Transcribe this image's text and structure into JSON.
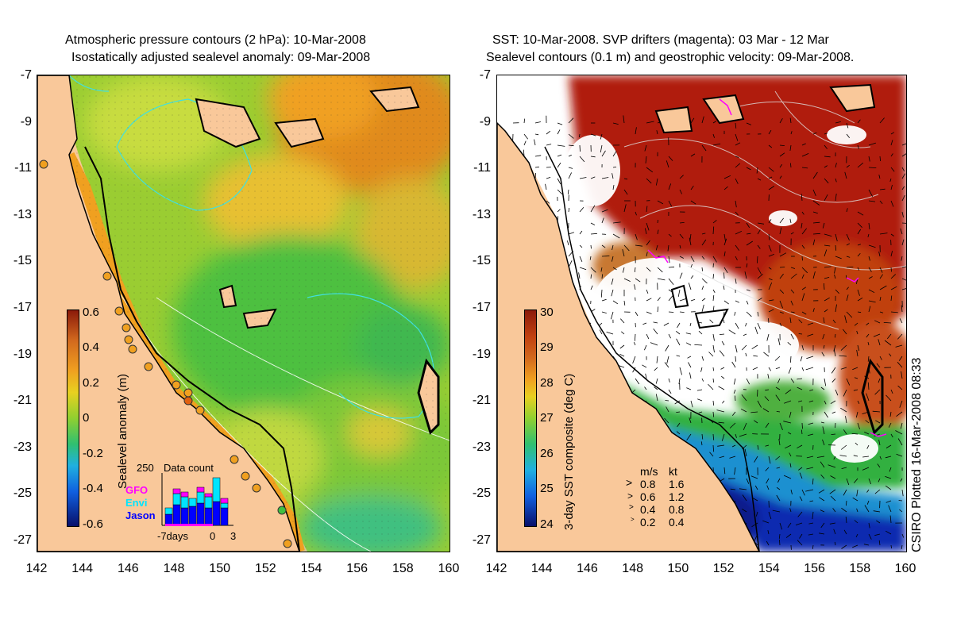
{
  "left_panel": {
    "title_line1": "Atmospheric pressure contours (2 hPa): 10-Mar-2008",
    "title_line2": "Isostatically adjusted sealevel anomaly: 09-Mar-2008",
    "colorbar_label": "Sealevel anomaly (m)",
    "colorbar_ticks": [
      "0.6",
      "0.4",
      "0.2",
      "0",
      "-0.2",
      "-0.4",
      "-0.6"
    ],
    "data_count": {
      "title": "Data count",
      "max_label": "250",
      "x_labels": [
        "-7days",
        "0",
        "3"
      ],
      "satellites": [
        {
          "name": "GFO",
          "color": "#ff00ff"
        },
        {
          "name": "Envi",
          "color": "#00e5ff"
        },
        {
          "name": "Jason",
          "color": "#0000ff"
        }
      ]
    }
  },
  "right_panel": {
    "title_line1": "SST: 10-Mar-2008. SVP drifters (magenta): 03 Mar - 12 Mar",
    "title_line2": "Sealevel contours (0.1 m) and geostrophic velocity: 09-Mar-2008.",
    "colorbar_label": "3-day SST composite (deg C)",
    "colorbar_ticks": [
      "30",
      "29",
      "28",
      "27",
      "26",
      "25",
      "24"
    ],
    "velocity_legend": {
      "header_ms": "m/s",
      "header_kt": "kt",
      "rows": [
        {
          "ms": "0.8",
          "kt": "1.6"
        },
        {
          "ms": "0.6",
          "kt": "1.2"
        },
        {
          "ms": "0.4",
          "kt": "0.8"
        },
        {
          "ms": "0.2",
          "kt": "0.4"
        }
      ]
    }
  },
  "axes": {
    "y_labels": [
      "-7",
      "-9",
      "-11",
      "-13",
      "-15",
      "-17",
      "-19",
      "-21",
      "-23",
      "-25",
      "-27"
    ],
    "x_labels": [
      "142",
      "144",
      "146",
      "148",
      "150",
      "152",
      "154",
      "156",
      "158",
      "160"
    ]
  },
  "credit": "CSIRO Plotted 16-Mar-2008 08:33"
}
